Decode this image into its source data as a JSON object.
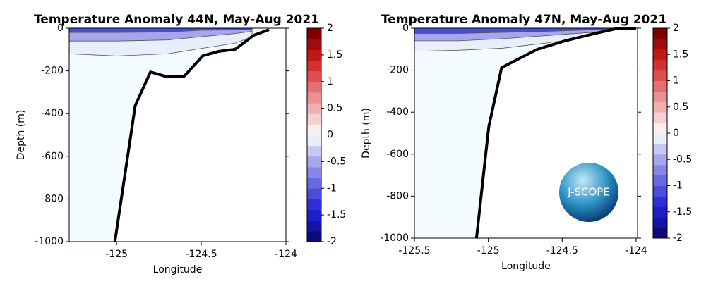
{
  "chart_data": [
    {
      "type": "contour",
      "title": "Temperature Anomaly 44N, May-Aug 2021",
      "x_label": "Longitude",
      "y_label": "Depth (m)",
      "xlim": [
        -125.28,
        -124
      ],
      "xticks": [
        -125,
        -124.5,
        -124
      ],
      "ylim": [
        -1000,
        0
      ],
      "yticks": [
        -1000,
        -800,
        -600,
        -400,
        -200,
        0
      ],
      "contours": [
        {
          "level": -0.2,
          "x": [
            -125.28,
            -125,
            -124.7,
            -124.5,
            -124.3,
            -124.2
          ],
          "depth": [
            -120,
            -130,
            -120,
            -95,
            -70,
            -40
          ]
        },
        {
          "level": -0.6,
          "x": [
            -125.28,
            -125,
            -124.7,
            -124.5,
            -124.3,
            -124.2
          ],
          "depth": [
            -60,
            -60,
            -55,
            -40,
            -25,
            -15
          ]
        },
        {
          "level": -1.2,
          "x": [
            -125.28,
            -125,
            -124.7,
            -124.5,
            -124.3,
            -124.2
          ],
          "depth": [
            -20,
            -20,
            -18,
            -10,
            -8,
            -5
          ]
        }
      ],
      "series": [
        {
          "color": "#000000",
          "x": [
            -125.01,
            -124.89,
            -124.8,
            -124.7,
            -124.6,
            -124.49,
            -124.4,
            -124.3,
            -124.19,
            -124.1
          ],
          "values": [
            -1000,
            -363,
            -205,
            -228,
            -224,
            -129,
            -109,
            -99,
            -33,
            -7
          ]
        }
      ],
      "clim": [
        -2,
        2
      ],
      "cticks": [
        -2,
        -1.5,
        -1,
        -0.5,
        0,
        0.5,
        1,
        1.5,
        2
      ],
      "colors": [
        "#0a0a80",
        "#1414a6",
        "#1e1ec8",
        "#3030d8",
        "#4b4bdc",
        "#6868e0",
        "#8686e6",
        "#a6a6ee",
        "#c8c8f4",
        "#e8eefa",
        "#fbeeee",
        "#f6d0d0",
        "#f0b0b0",
        "#ea9090",
        "#e47070",
        "#de5050",
        "#d43030",
        "#c01818",
        "#a00c0c",
        "#800000"
      ],
      "background": "#f3fbfe"
    },
    {
      "type": "contour",
      "title": "Temperature Anomaly 47N, May-Aug 2021",
      "x_label": "Longitude",
      "y_label": "Depth (m)",
      "xlim": [
        -125.5,
        -123.99
      ],
      "xticks": [
        -125.5,
        -125,
        -124.5,
        -124
      ],
      "ylim": [
        -1000,
        0
      ],
      "yticks": [
        -1000,
        -800,
        -600,
        -400,
        -200,
        0
      ],
      "contours": [
        {
          "level": -0.2,
          "x": [
            -125.5,
            -125.2,
            -124.9,
            -124.6,
            -124.3,
            -124.1
          ],
          "depth": [
            -110,
            -105,
            -95,
            -70,
            -40,
            -10
          ]
        },
        {
          "level": -0.6,
          "x": [
            -125.5,
            -125.2,
            -124.9,
            -124.6,
            -124.3,
            -124.1
          ],
          "depth": [
            -60,
            -60,
            -50,
            -35,
            -20,
            -5
          ]
        },
        {
          "level": -1.2,
          "x": [
            -125.5,
            -125.2,
            -124.9,
            -124.6,
            -124.3,
            -124.1
          ],
          "depth": [
            -25,
            -25,
            -20,
            -15,
            -8,
            -3
          ]
        }
      ],
      "series": [
        {
          "color": "#000000",
          "x": [
            -125.08,
            -124.997,
            -124.91,
            -124.67,
            -124.48,
            -124.29,
            -124.12,
            -124
          ],
          "values": [
            -1000,
            -470,
            -188,
            -101,
            -60,
            -27,
            0,
            0
          ]
        }
      ],
      "clim": [
        -2,
        2
      ],
      "cticks": [
        -2,
        -1.5,
        -1,
        -0.5,
        0,
        0.5,
        1,
        1.5,
        2
      ],
      "colors": [
        "#0a0a80",
        "#1414a6",
        "#1e1ec8",
        "#3030d8",
        "#4b4bdc",
        "#6868e0",
        "#8686e6",
        "#a6a6ee",
        "#c8c8f4",
        "#e8eefa",
        "#fbeeee",
        "#f6d0d0",
        "#f0b0b0",
        "#ea9090",
        "#e47070",
        "#de5050",
        "#d43030",
        "#c01818",
        "#a00c0c",
        "#800000"
      ],
      "background": "#f3fbfe",
      "logo": "J-SCOPE"
    }
  ]
}
